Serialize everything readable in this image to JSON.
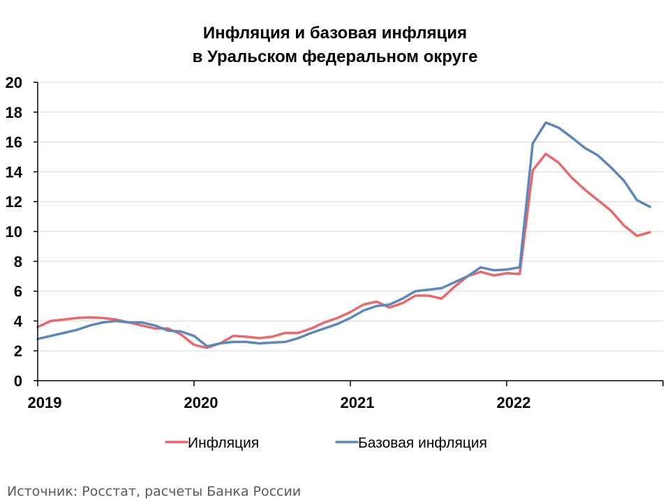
{
  "chart_data": {
    "type": "line",
    "title_lines": [
      "Инфляция и базовая инфляция",
      "в  Уральском федеральном округе"
    ],
    "ylim": [
      0,
      20
    ],
    "yticks": [
      0,
      2,
      4,
      6,
      8,
      10,
      12,
      14,
      16,
      18,
      20
    ],
    "x_tick_labels": [
      "2019",
      "2020",
      "2021",
      "2022"
    ],
    "grid": true,
    "legend_position": "bottom",
    "x": [
      "2019-01",
      "2019-02",
      "2019-03",
      "2019-04",
      "2019-05",
      "2019-06",
      "2019-07",
      "2019-08",
      "2019-09",
      "2019-10",
      "2019-11",
      "2019-12",
      "2020-01",
      "2020-02",
      "2020-03",
      "2020-04",
      "2020-05",
      "2020-06",
      "2020-07",
      "2020-08",
      "2020-09",
      "2020-10",
      "2020-11",
      "2020-12",
      "2021-01",
      "2021-02",
      "2021-03",
      "2021-04",
      "2021-05",
      "2021-06",
      "2021-07",
      "2021-08",
      "2021-09",
      "2021-10",
      "2021-11",
      "2021-12",
      "2022-01",
      "2022-02",
      "2022-03",
      "2022-04",
      "2022-05",
      "2022-06",
      "2022-07",
      "2022-08",
      "2022-09",
      "2022-10",
      "2022-11",
      "2022-12"
    ],
    "series": [
      {
        "name": "Инфляция",
        "color": "#e8686b",
        "values": [
          3.6,
          4.0,
          4.1,
          4.2,
          4.25,
          4.2,
          4.1,
          3.9,
          3.7,
          3.5,
          3.5,
          3.1,
          2.4,
          2.2,
          2.5,
          3.0,
          2.95,
          2.85,
          2.95,
          3.2,
          3.2,
          3.5,
          3.9,
          4.2,
          4.6,
          5.1,
          5.3,
          4.9,
          5.2,
          5.7,
          5.7,
          5.5,
          6.3,
          7.0,
          7.3,
          7.05,
          7.2,
          7.15,
          14.1,
          15.2,
          14.6,
          13.6,
          12.8,
          12.1,
          11.4,
          10.4,
          9.7,
          9.95
        ]
      },
      {
        "name": "Базовая инфляция",
        "color": "#5b87bd",
        "values": [
          2.8,
          3.0,
          3.2,
          3.4,
          3.7,
          3.9,
          4.0,
          3.9,
          3.9,
          3.7,
          3.35,
          3.3,
          3.0,
          2.3,
          2.5,
          2.6,
          2.6,
          2.5,
          2.55,
          2.6,
          2.85,
          3.2,
          3.5,
          3.8,
          4.2,
          4.7,
          5.0,
          5.1,
          5.5,
          6.0,
          6.1,
          6.2,
          6.6,
          7.0,
          7.6,
          7.4,
          7.45,
          7.6,
          15.9,
          17.3,
          16.95,
          16.3,
          15.6,
          15.1,
          14.3,
          13.4,
          12.1,
          11.65
        ]
      }
    ]
  },
  "source_note": "Источник: Росстат, расчеты Банка России"
}
